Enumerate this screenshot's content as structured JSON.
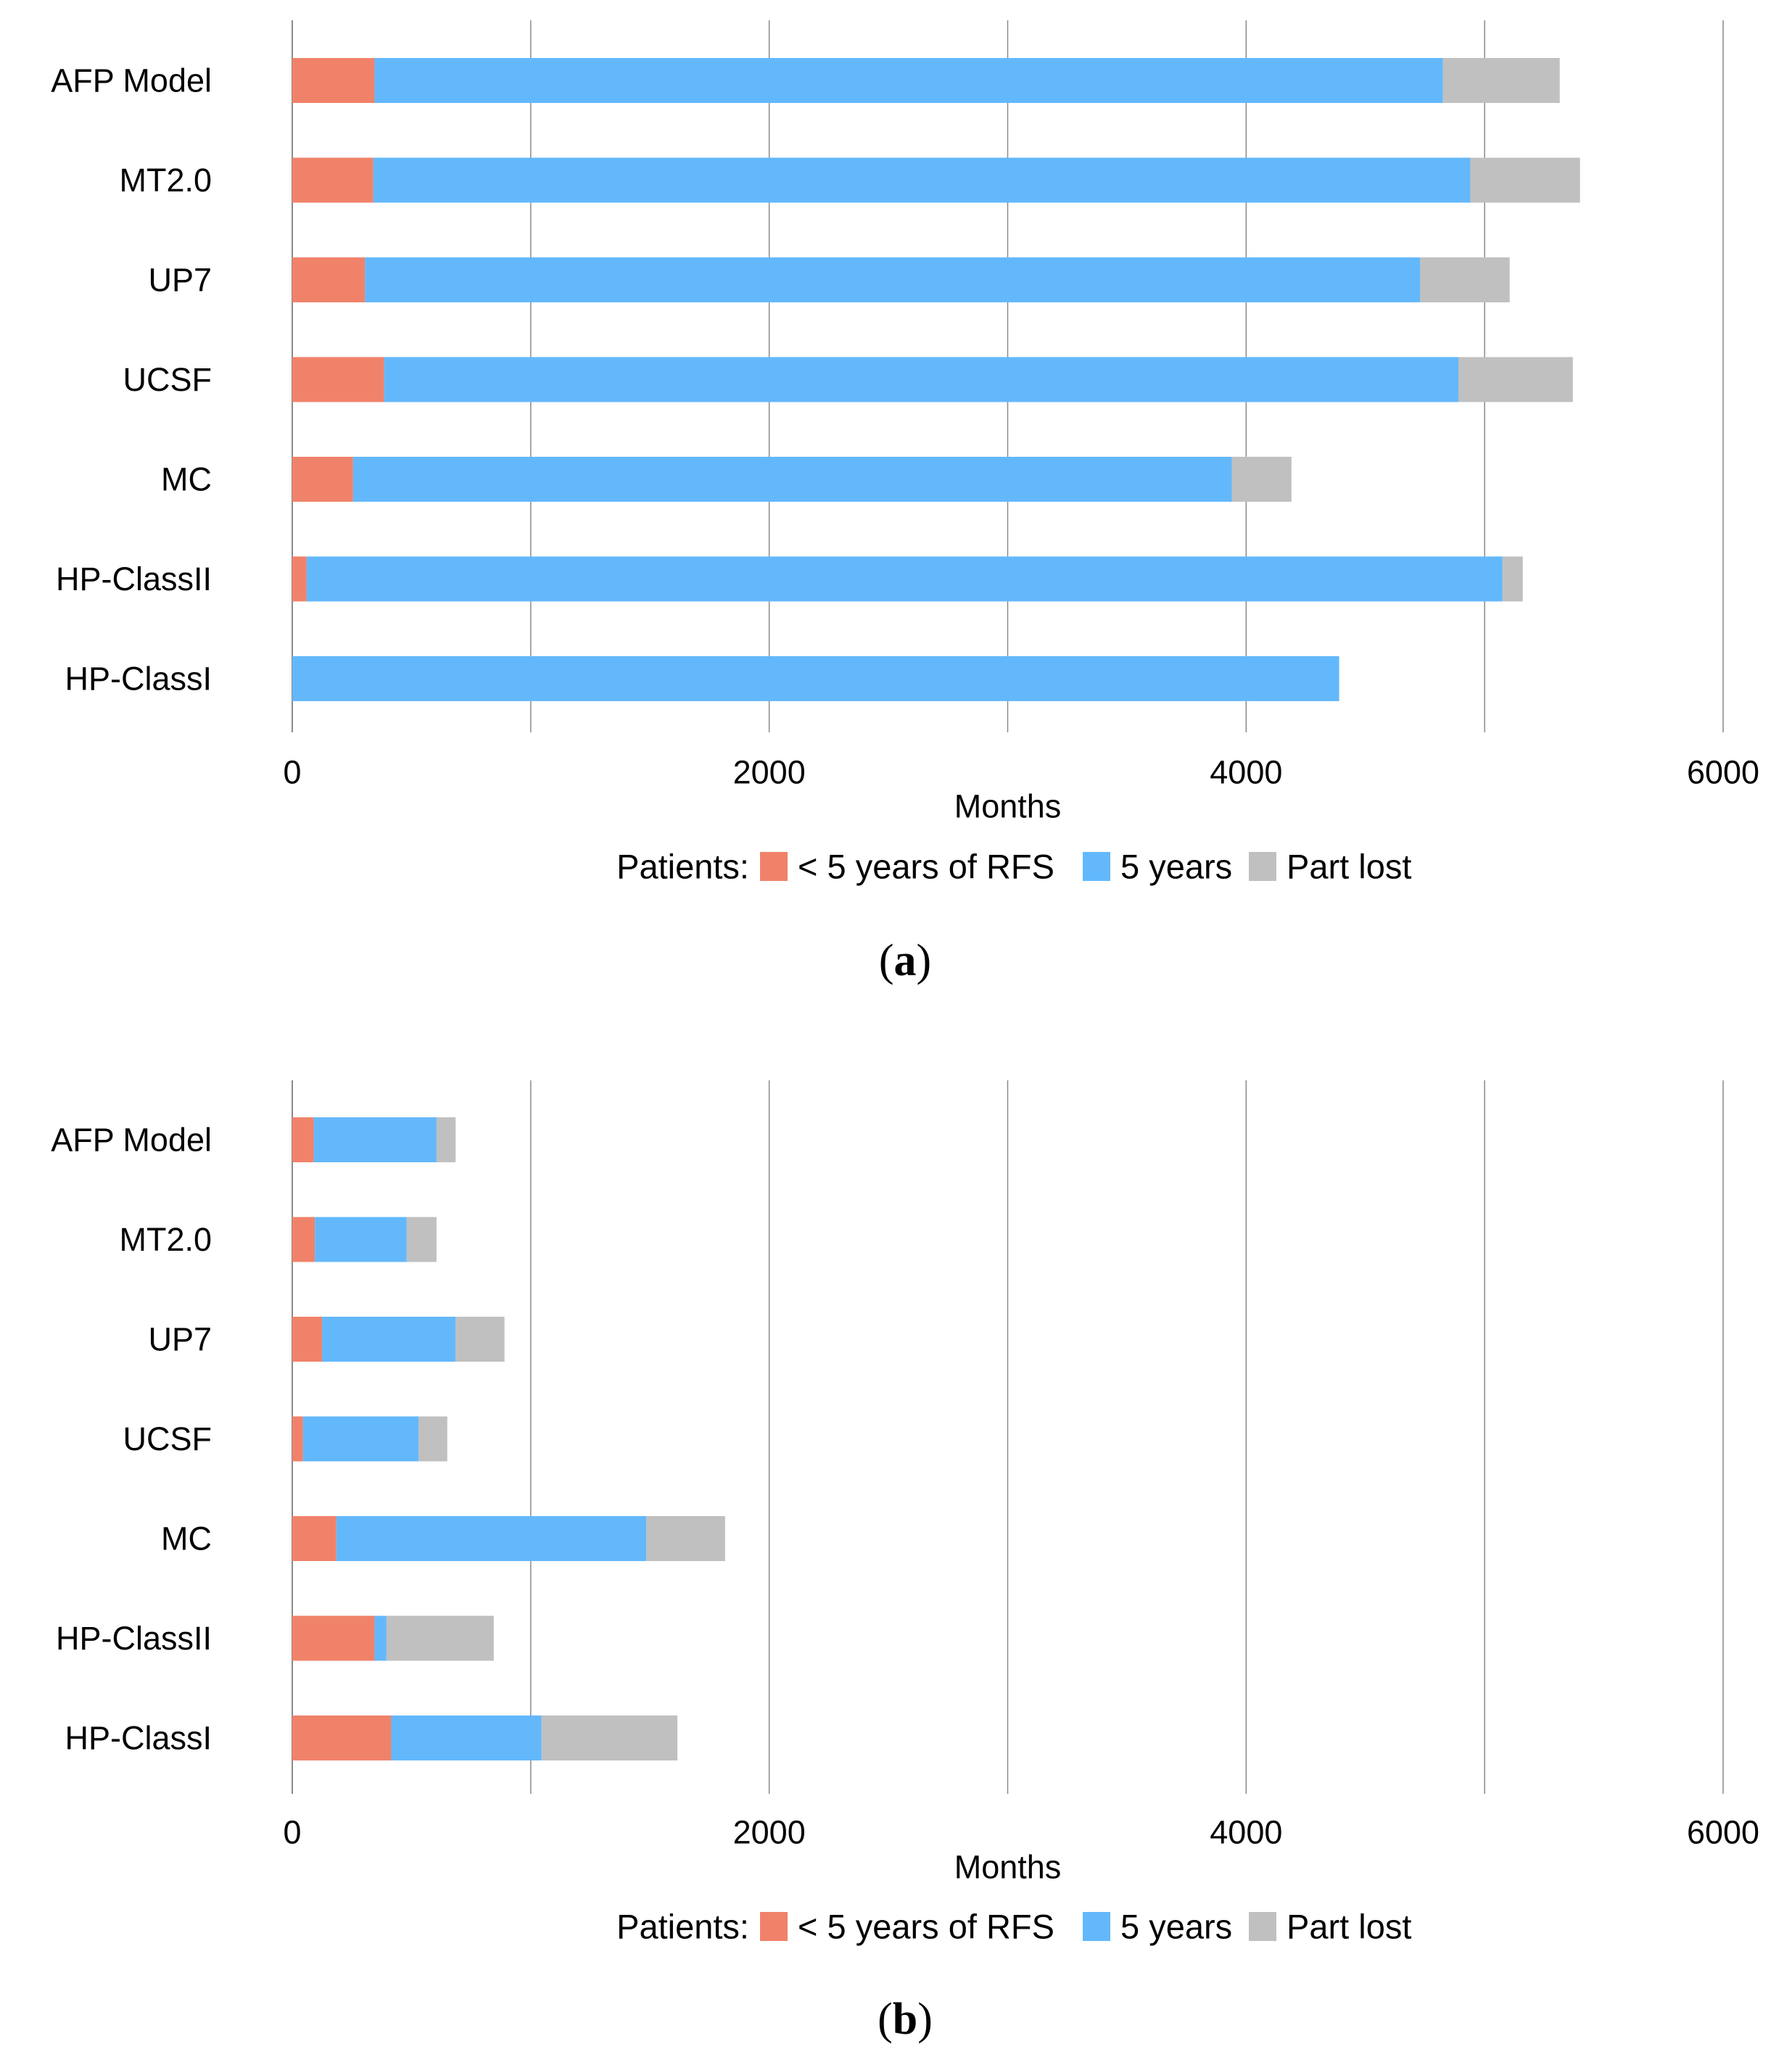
{
  "colors": {
    "lt5": "#f0826a",
    "five": "#63b8fc",
    "lost": "#c0c0c0",
    "grid": "#8a8a8a"
  },
  "chart_data": [
    {
      "type": "bar",
      "orientation": "horizontal",
      "stacked": true,
      "panel_label": "a",
      "categories": [
        "AFP Model",
        "MT2.0",
        "UP7",
        "UCSF",
        "MC",
        "HP-ClassII",
        "HP-ClassI"
      ],
      "series": [
        {
          "name": "< 5 years of RFS",
          "color": "#f0826a",
          "values": [
            345,
            340,
            305,
            385,
            255,
            60,
            0
          ]
        },
        {
          "name": "5 years",
          "color": "#63b8fc",
          "values": [
            4480,
            4600,
            4425,
            4505,
            3685,
            5015,
            4390
          ]
        },
        {
          "name": "Part lost",
          "color": "#c0c0c0",
          "values": [
            490,
            460,
            375,
            480,
            250,
            85,
            0
          ]
        }
      ],
      "xlabel": "Months",
      "xlim": [
        0,
        6000
      ],
      "xticks": [
        "0",
        "2000",
        "4000",
        "6000"
      ],
      "grid": "vertical, every 1000",
      "legend_title": "Patients:",
      "legend_position": "bottom"
    },
    {
      "type": "bar",
      "orientation": "horizontal",
      "stacked": true,
      "panel_label": "b",
      "categories": [
        "AFP Model",
        "MT2.0",
        "UP7",
        "UCSF",
        "MC",
        "HP-ClassII",
        "HP-ClassI"
      ],
      "series": [
        {
          "name": "< 5 years of RFS",
          "color": "#f0826a",
          "values": [
            90,
            95,
            125,
            45,
            185,
            345,
            415
          ]
        },
        {
          "name": "5 years",
          "color": "#63b8fc",
          "values": [
            515,
            385,
            560,
            485,
            1300,
            50,
            630
          ]
        },
        {
          "name": "Part lost",
          "color": "#c0c0c0",
          "values": [
            80,
            125,
            205,
            120,
            330,
            450,
            570
          ]
        }
      ],
      "xlabel": "Months",
      "xlim": [
        0,
        6000
      ],
      "xticks": [
        "0",
        "2000",
        "4000",
        "6000"
      ],
      "grid": "vertical, every 1000",
      "legend_title": "Patients:",
      "legend_position": "bottom"
    }
  ]
}
